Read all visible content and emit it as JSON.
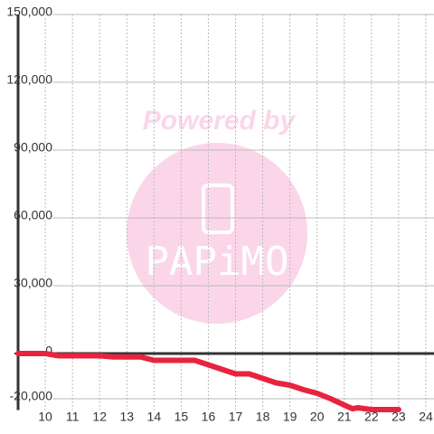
{
  "chart_data": {
    "type": "line",
    "watermark": {
      "top": "Powered by",
      "logo": "PAPiMO"
    },
    "x": [
      9,
      10,
      10.5,
      11,
      12,
      12.5,
      13.5,
      14,
      15,
      15.5,
      16,
      16.5,
      17,
      17.5,
      18,
      18.5,
      19,
      19.5,
      20,
      20.5,
      21,
      21.3,
      21.5,
      22,
      23
    ],
    "series": [
      {
        "color": "#e8233f",
        "values": [
          0,
          0,
          -1000,
          -1000,
          -1000,
          -1500,
          -1500,
          -3000,
          -3000,
          -3000,
          -5000,
          -7000,
          -9000,
          -9000,
          -11000,
          -13000,
          -14000,
          -16000,
          -17600,
          -20000,
          -22800,
          -24400,
          -24000,
          -24800,
          -24800
        ]
      }
    ],
    "xlim": [
      9,
      24.3
    ],
    "xticks": [
      10,
      11,
      12,
      13,
      14,
      15,
      16,
      17,
      18,
      19,
      20,
      21,
      22,
      23,
      24
    ],
    "ylim": [
      -25000,
      150000
    ],
    "yticks": [
      {
        "value": 150000,
        "label": "150,000"
      },
      {
        "value": 120000,
        "label": "120,000"
      },
      {
        "value": 90000,
        "label": "90,000"
      },
      {
        "value": 60000,
        "label": "60,000"
      },
      {
        "value": 30000,
        "label": "30,000"
      },
      0,
      {
        "value": -20000,
        "label": "-20,000"
      }
    ],
    "grid": true
  }
}
